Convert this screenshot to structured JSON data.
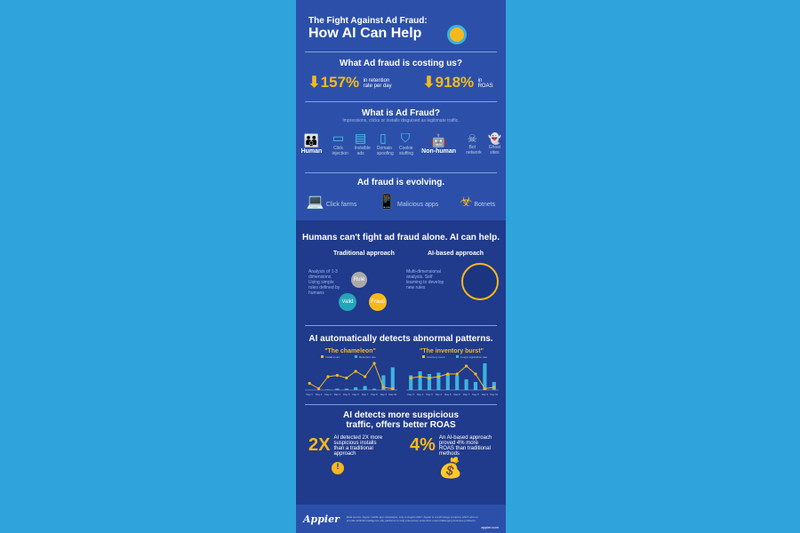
{
  "title": {
    "line1": "The Fight Against Ad Fraud:",
    "line2": "How AI Can Help"
  },
  "cost": {
    "heading": "What Ad fraud is costing us?",
    "stats": [
      {
        "value": "157%",
        "label": "in retention rate per day"
      },
      {
        "value": "918%",
        "label": "in ROAS"
      }
    ]
  },
  "what": {
    "heading": "What is Ad Fraud?",
    "sub": "Impressions, clicks or installs disguised as legitimate traffic.",
    "human": "Human",
    "human_items": [
      "Click injection",
      "Invisible ads",
      "Domain spoofing",
      "Cookie stuffing"
    ],
    "nonhuman": "Non-human",
    "nonhuman_items": [
      "Bot network",
      "Ghost sites"
    ]
  },
  "evolving": {
    "heading": "Ad fraud is evolving.",
    "items": [
      "Click farms",
      "Malicious apps",
      "Botnets"
    ]
  },
  "humans": {
    "heading": "Humans can't fight ad fraud alone. AI can help.",
    "traditional": {
      "title": "Traditional approach",
      "points": "Analysis of 1-3 dimensions. Using simple rules defined by humans",
      "rule": "Rule",
      "yes": "Yes",
      "no": "No",
      "valid": "Valid",
      "fraud": "Fraud"
    },
    "ai": {
      "title": "AI-based approach",
      "points": "Multi-dimensional analysis. Self learning to develop new rules"
    }
  },
  "patterns": {
    "heading": "AI automatically detects abnormal patterns."
  },
  "chart_data": [
    {
      "type": "bar+line",
      "title": "\"The chameleon\"",
      "categories": [
        "Day 1",
        "Day 2",
        "Day 3",
        "Day 4",
        "Day 5",
        "Day 6",
        "Day 7",
        "Day 8",
        "Day 9",
        "Day 10"
      ],
      "series": [
        {
          "name": "Install count",
          "kind": "line",
          "values": [
            0.25,
            0.05,
            0.5,
            0.55,
            0.45,
            0.7,
            0.5,
            1.0,
            0.1,
            0.05
          ]
        },
        {
          "name": "Retention rate",
          "kind": "bar",
          "values": [
            0,
            0,
            0.02,
            0.05,
            0.05,
            0.1,
            0.15,
            0.05,
            0.55,
            0.85
          ]
        }
      ],
      "colors": {
        "line": "#f6b91c",
        "bar": "#3bb3e0"
      }
    },
    {
      "type": "bar+line",
      "title": "\"The inventory burst\"",
      "categories": [
        "Day 1",
        "Day 2",
        "Day 3",
        "Day 4",
        "Day 5",
        "Day 6",
        "Day 7",
        "Day 8",
        "Day 9",
        "Day 10"
      ],
      "series": [
        {
          "name": "Inventory count",
          "kind": "line",
          "values": [
            0.45,
            0.5,
            0.45,
            0.5,
            0.6,
            0.6,
            0.9,
            0.6,
            0.05,
            0.1
          ]
        },
        {
          "name": "In-app registration rate",
          "kind": "bar",
          "values": [
            0.55,
            0.7,
            0.6,
            0.65,
            0.6,
            0.55,
            0.4,
            0.3,
            1.0,
            0.3
          ]
        }
      ],
      "colors": {
        "line": "#f6b91c",
        "bar": "#3bb3e0"
      }
    }
  ],
  "roas": {
    "heading": "AI detects more suspicious traffic, offers better ROAS",
    "stats": [
      {
        "value": "2X",
        "label": "AI detected 2X more suspicious installs than a traditional approach"
      },
      {
        "value": "4%",
        "label": "An AI-based approach proved 4% more ROAS than traditional methods"
      }
    ]
  },
  "footer": {
    "logo": "Appier",
    "text": "Data source: Appier mobile app campaigns, July to August 2017. Appier is a technology company which aims to provide artificial intelligence (AI) platforms to help enterprises solve their most challenging business problems.",
    "url": "appier.com"
  },
  "colors": {
    "accent": "#f6b91c",
    "cyan": "#3bb3e0",
    "panel": "#2c50aa",
    "panel_dark": "#203a8c",
    "background": "#2fa3dc"
  }
}
